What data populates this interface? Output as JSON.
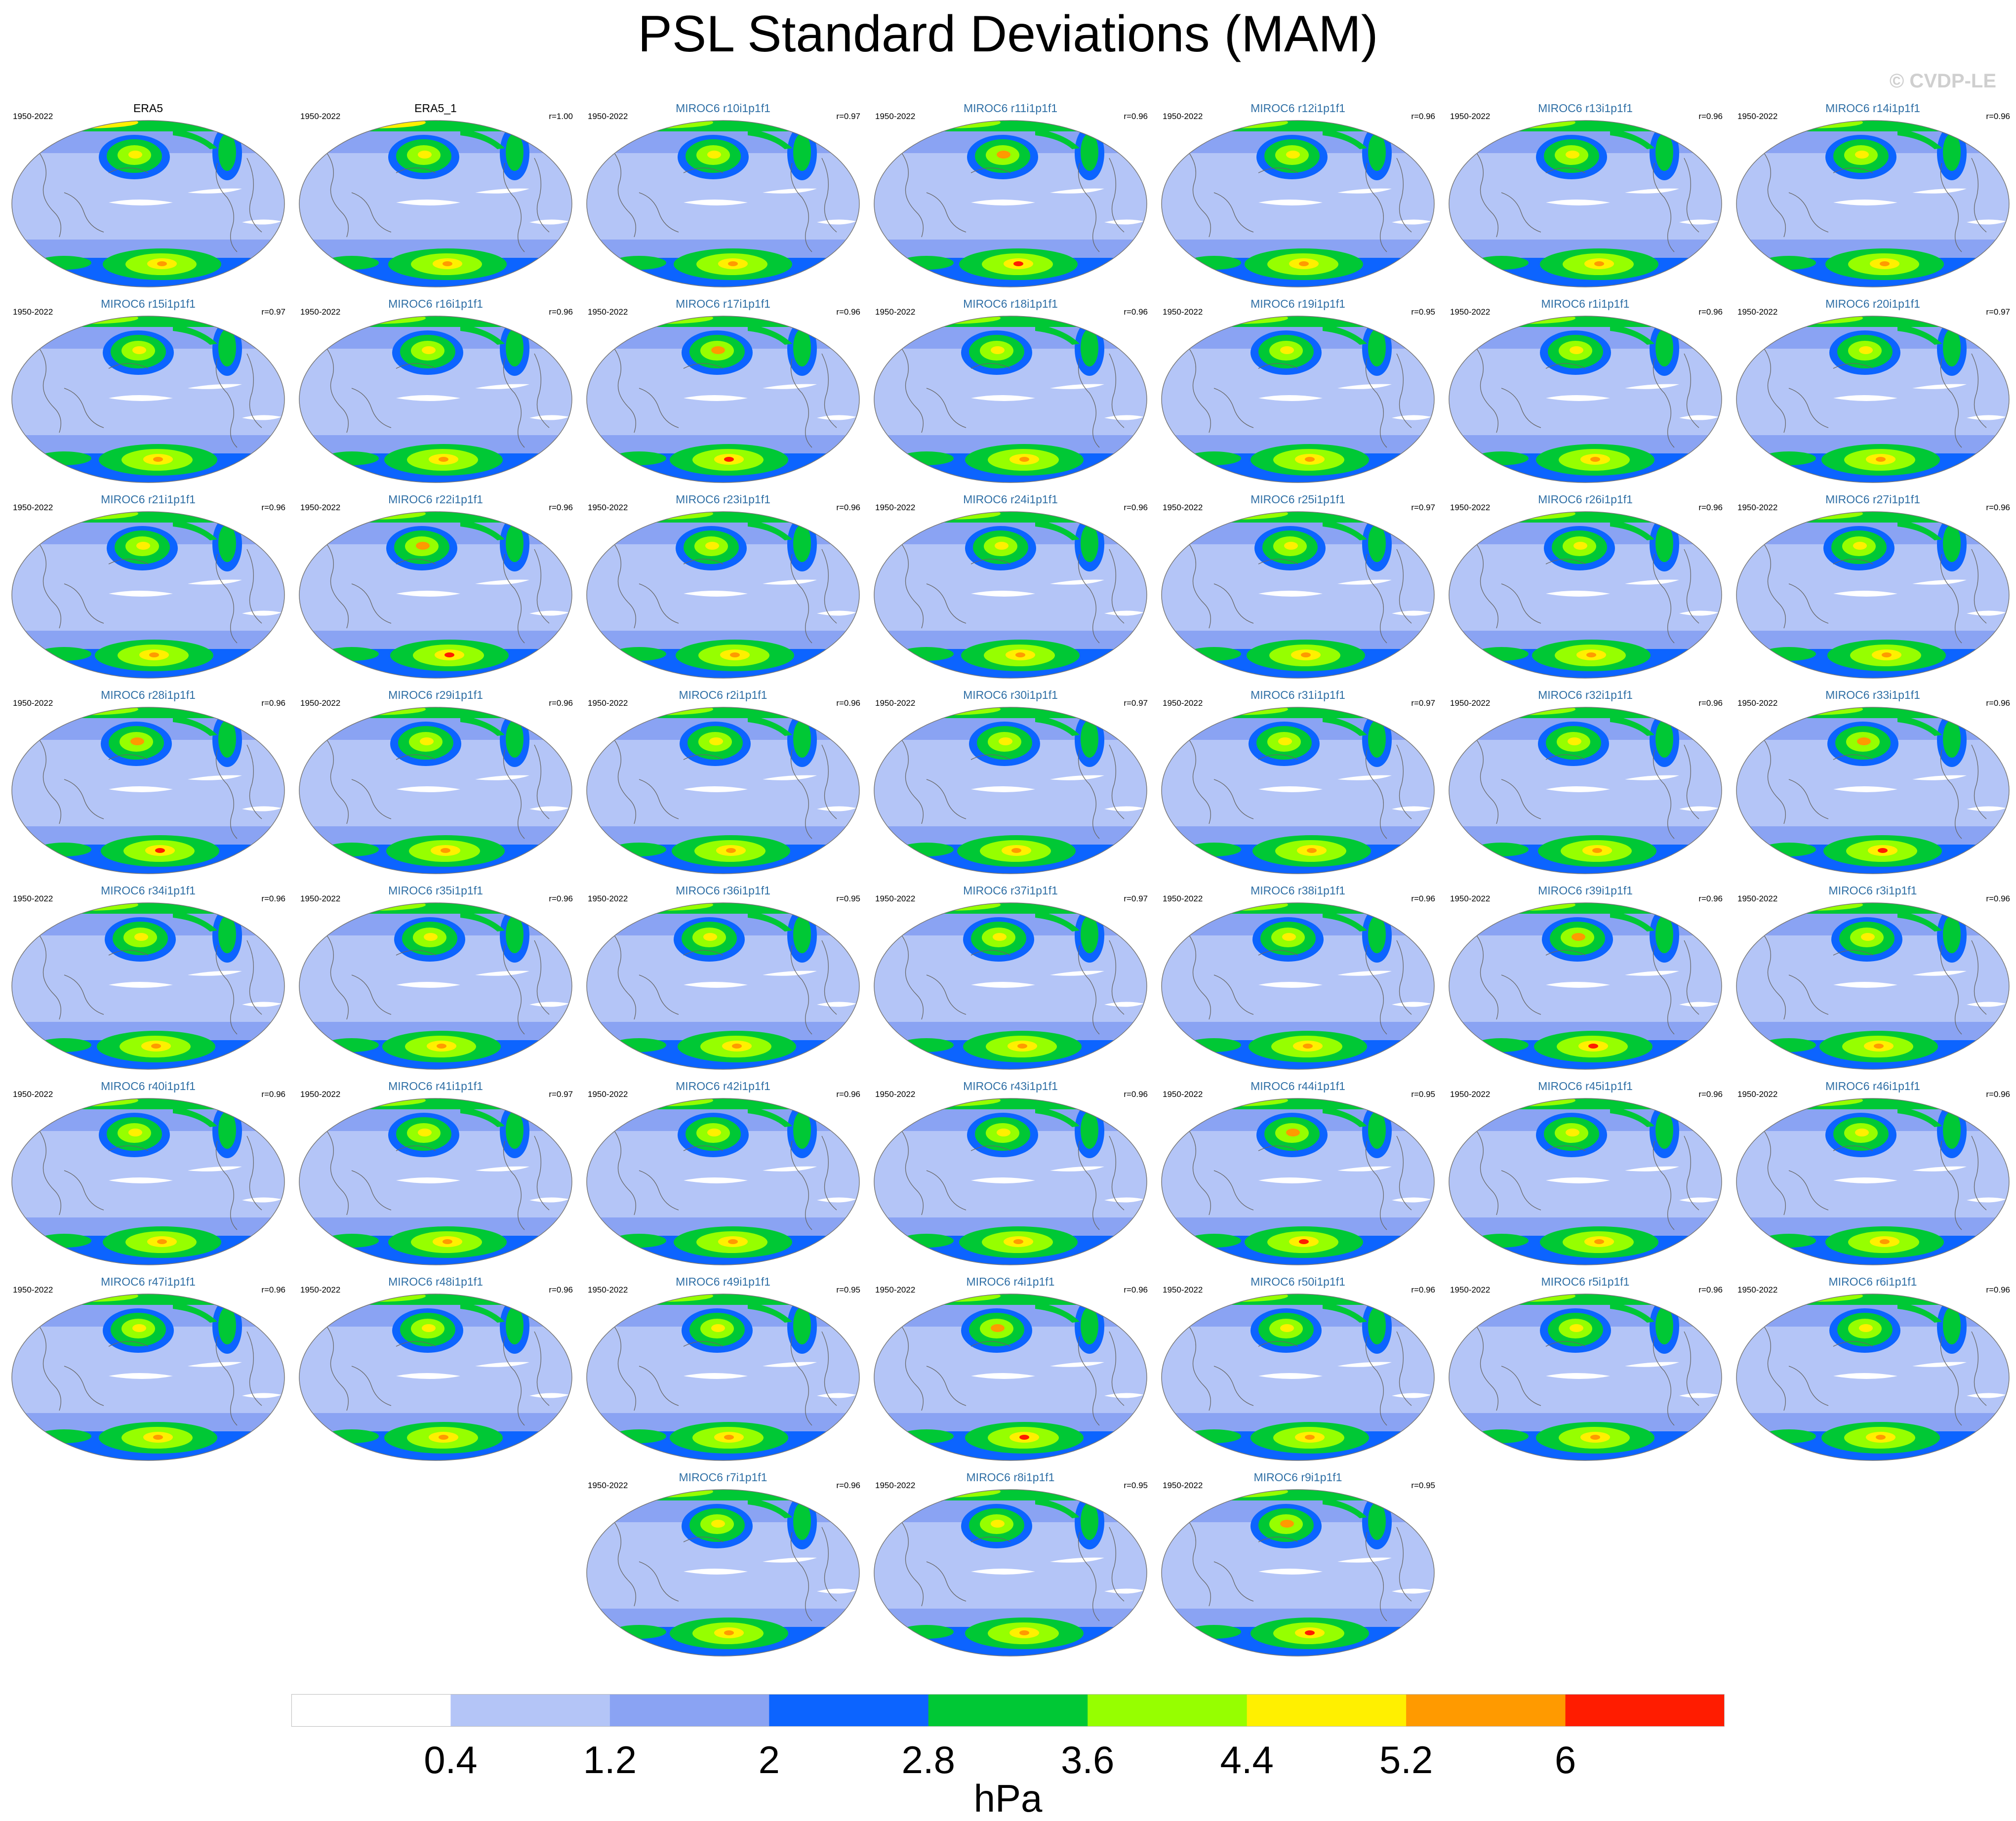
{
  "title": "PSL Standard Deviations (MAM)",
  "watermark": "© CVDP-LE",
  "chart_data": {
    "type": "heatmap",
    "title": "PSL Standard Deviations (MAM)",
    "projection": "global map",
    "period": "1950-2022",
    "units": "hPa",
    "colorbar": {
      "levels": [
        0.4,
        1.2,
        2,
        2.8,
        3.6,
        4.4,
        5.2,
        6
      ],
      "tick_labels": [
        "0.4",
        "1.2",
        "2",
        "2.8",
        "3.6",
        "4.4",
        "5.2",
        "6"
      ],
      "colors": [
        "#ffffff",
        "#b4c5f7",
        "#8aa3f3",
        "#0c64ff",
        "#00c835",
        "#96ff00",
        "#fff000",
        "#ff9a00",
        "#ff1c00"
      ],
      "label": "hPa"
    },
    "panels": [
      {
        "name": "ERA5",
        "period": "1950-2022",
        "r": "",
        "observed": true
      },
      {
        "name": "ERA5_1",
        "period": "1950-2022",
        "r": "r=1.00",
        "observed": true
      },
      {
        "name": "MIROC6 r10i1p1f1",
        "period": "1950-2022",
        "r": "r=0.97"
      },
      {
        "name": "MIROC6 r11i1p1f1",
        "period": "1950-2022",
        "r": "r=0.96"
      },
      {
        "name": "MIROC6 r12i1p1f1",
        "period": "1950-2022",
        "r": "r=0.96"
      },
      {
        "name": "MIROC6 r13i1p1f1",
        "period": "1950-2022",
        "r": "r=0.96"
      },
      {
        "name": "MIROC6 r14i1p1f1",
        "period": "1950-2022",
        "r": "r=0.96"
      },
      {
        "name": "MIROC6 r15i1p1f1",
        "period": "1950-2022",
        "r": "r=0.97"
      },
      {
        "name": "MIROC6 r16i1p1f1",
        "period": "1950-2022",
        "r": "r=0.96"
      },
      {
        "name": "MIROC6 r17i1p1f1",
        "period": "1950-2022",
        "r": "r=0.96"
      },
      {
        "name": "MIROC6 r18i1p1f1",
        "period": "1950-2022",
        "r": "r=0.96"
      },
      {
        "name": "MIROC6 r19i1p1f1",
        "period": "1950-2022",
        "r": "r=0.95"
      },
      {
        "name": "MIROC6 r1i1p1f1",
        "period": "1950-2022",
        "r": "r=0.96"
      },
      {
        "name": "MIROC6 r20i1p1f1",
        "period": "1950-2022",
        "r": "r=0.97"
      },
      {
        "name": "MIROC6 r21i1p1f1",
        "period": "1950-2022",
        "r": "r=0.96"
      },
      {
        "name": "MIROC6 r22i1p1f1",
        "period": "1950-2022",
        "r": "r=0.96"
      },
      {
        "name": "MIROC6 r23i1p1f1",
        "period": "1950-2022",
        "r": "r=0.96"
      },
      {
        "name": "MIROC6 r24i1p1f1",
        "period": "1950-2022",
        "r": "r=0.96"
      },
      {
        "name": "MIROC6 r25i1p1f1",
        "period": "1950-2022",
        "r": "r=0.97"
      },
      {
        "name": "MIROC6 r26i1p1f1",
        "period": "1950-2022",
        "r": "r=0.96"
      },
      {
        "name": "MIROC6 r27i1p1f1",
        "period": "1950-2022",
        "r": "r=0.96"
      },
      {
        "name": "MIROC6 r28i1p1f1",
        "period": "1950-2022",
        "r": "r=0.96"
      },
      {
        "name": "MIROC6 r29i1p1f1",
        "period": "1950-2022",
        "r": "r=0.96"
      },
      {
        "name": "MIROC6 r2i1p1f1",
        "period": "1950-2022",
        "r": "r=0.96"
      },
      {
        "name": "MIROC6 r30i1p1f1",
        "period": "1950-2022",
        "r": "r=0.97"
      },
      {
        "name": "MIROC6 r31i1p1f1",
        "period": "1950-2022",
        "r": "r=0.97"
      },
      {
        "name": "MIROC6 r32i1p1f1",
        "period": "1950-2022",
        "r": "r=0.96"
      },
      {
        "name": "MIROC6 r33i1p1f1",
        "period": "1950-2022",
        "r": "r=0.96"
      },
      {
        "name": "MIROC6 r34i1p1f1",
        "period": "1950-2022",
        "r": "r=0.96"
      },
      {
        "name": "MIROC6 r35i1p1f1",
        "period": "1950-2022",
        "r": "r=0.96"
      },
      {
        "name": "MIROC6 r36i1p1f1",
        "period": "1950-2022",
        "r": "r=0.95"
      },
      {
        "name": "MIROC6 r37i1p1f1",
        "period": "1950-2022",
        "r": "r=0.97"
      },
      {
        "name": "MIROC6 r38i1p1f1",
        "period": "1950-2022",
        "r": "r=0.96"
      },
      {
        "name": "MIROC6 r39i1p1f1",
        "period": "1950-2022",
        "r": "r=0.96"
      },
      {
        "name": "MIROC6 r3i1p1f1",
        "period": "1950-2022",
        "r": "r=0.96"
      },
      {
        "name": "MIROC6 r40i1p1f1",
        "period": "1950-2022",
        "r": "r=0.96"
      },
      {
        "name": "MIROC6 r41i1p1f1",
        "period": "1950-2022",
        "r": "r=0.97"
      },
      {
        "name": "MIROC6 r42i1p1f1",
        "period": "1950-2022",
        "r": "r=0.96"
      },
      {
        "name": "MIROC6 r43i1p1f1",
        "period": "1950-2022",
        "r": "r=0.96"
      },
      {
        "name": "MIROC6 r44i1p1f1",
        "period": "1950-2022",
        "r": "r=0.95"
      },
      {
        "name": "MIROC6 r45i1p1f1",
        "period": "1950-2022",
        "r": "r=0.96"
      },
      {
        "name": "MIROC6 r46i1p1f1",
        "period": "1950-2022",
        "r": "r=0.96"
      },
      {
        "name": "MIROC6 r47i1p1f1",
        "period": "1950-2022",
        "r": "r=0.96"
      },
      {
        "name": "MIROC6 r48i1p1f1",
        "period": "1950-2022",
        "r": "r=0.96"
      },
      {
        "name": "MIROC6 r49i1p1f1",
        "period": "1950-2022",
        "r": "r=0.95"
      },
      {
        "name": "MIROC6 r4i1p1f1",
        "period": "1950-2022",
        "r": "r=0.96"
      },
      {
        "name": "MIROC6 r50i1p1f1",
        "period": "1950-2022",
        "r": "r=0.96"
      },
      {
        "name": "MIROC6 r5i1p1f1",
        "period": "1950-2022",
        "r": "r=0.96"
      },
      {
        "name": "MIROC6 r6i1p1f1",
        "period": "1950-2022",
        "r": "r=0.96"
      },
      {
        "name": "MIROC6 r7i1p1f1",
        "period": "1950-2022",
        "r": "r=0.96"
      },
      {
        "name": "MIROC6 r8i1p1f1",
        "period": "1950-2022",
        "r": "r=0.95"
      },
      {
        "name": "MIROC6 r9i1p1f1",
        "period": "1950-2022",
        "r": "r=0.95"
      }
    ]
  }
}
